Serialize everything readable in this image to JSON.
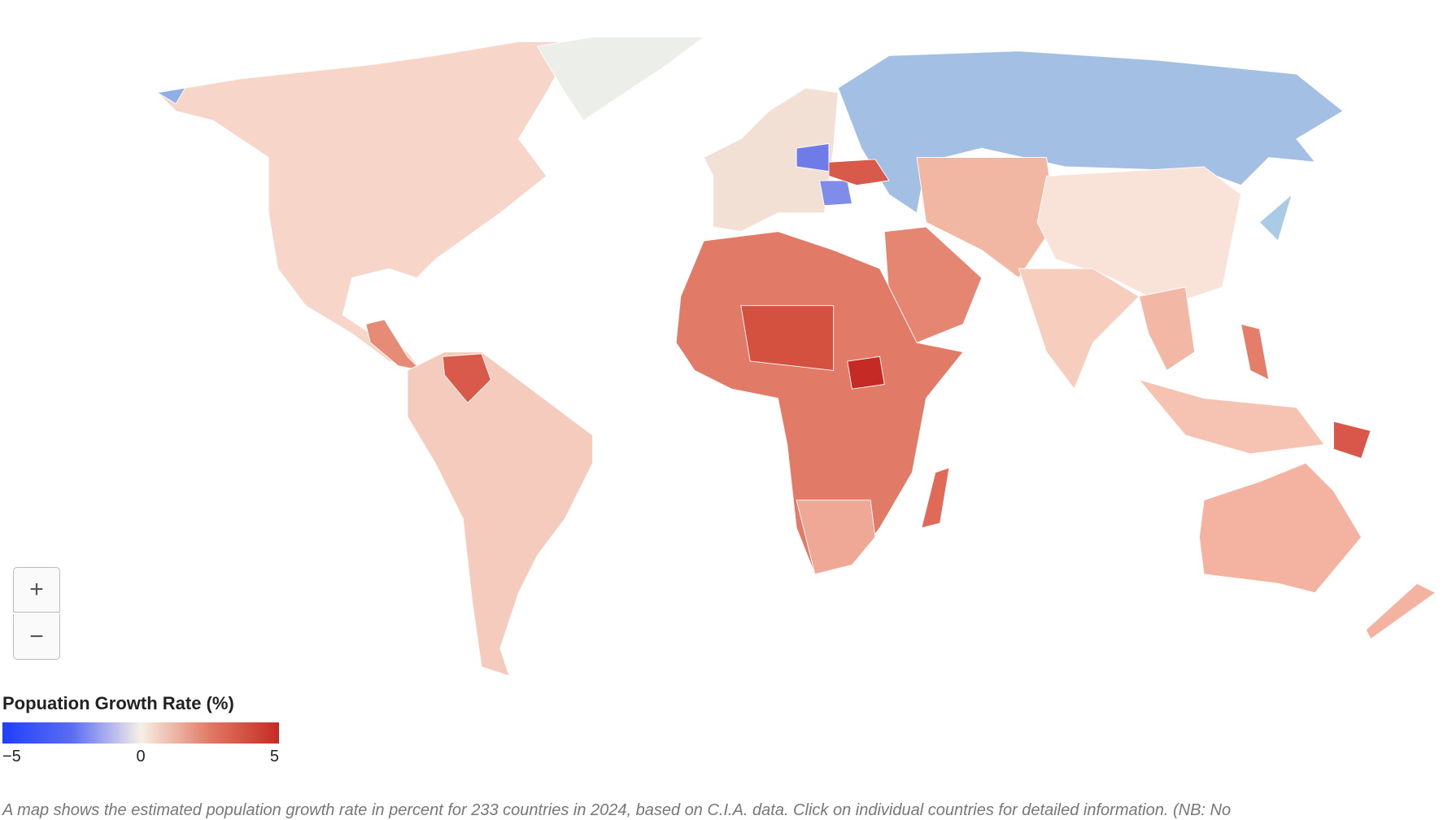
{
  "map": {
    "zoom": {
      "in": "+",
      "out": "−"
    },
    "legend": {
      "title": "Popuation Growth Rate (%)",
      "range": [
        -5,
        5
      ],
      "colors": [
        "#1f3fff",
        "#5a6cf2",
        "#f7efe6",
        "#e07a64",
        "#c62a24"
      ],
      "ticks": [
        {
          "value": -5,
          "label": "−5"
        },
        0,
        5
      ]
    },
    "caption": "A map shows the estimated population growth rate in percent for 233 countries in 2024, based on C.I.A. data. Click on individual countries for detailed information. (NB: No"
  }
}
